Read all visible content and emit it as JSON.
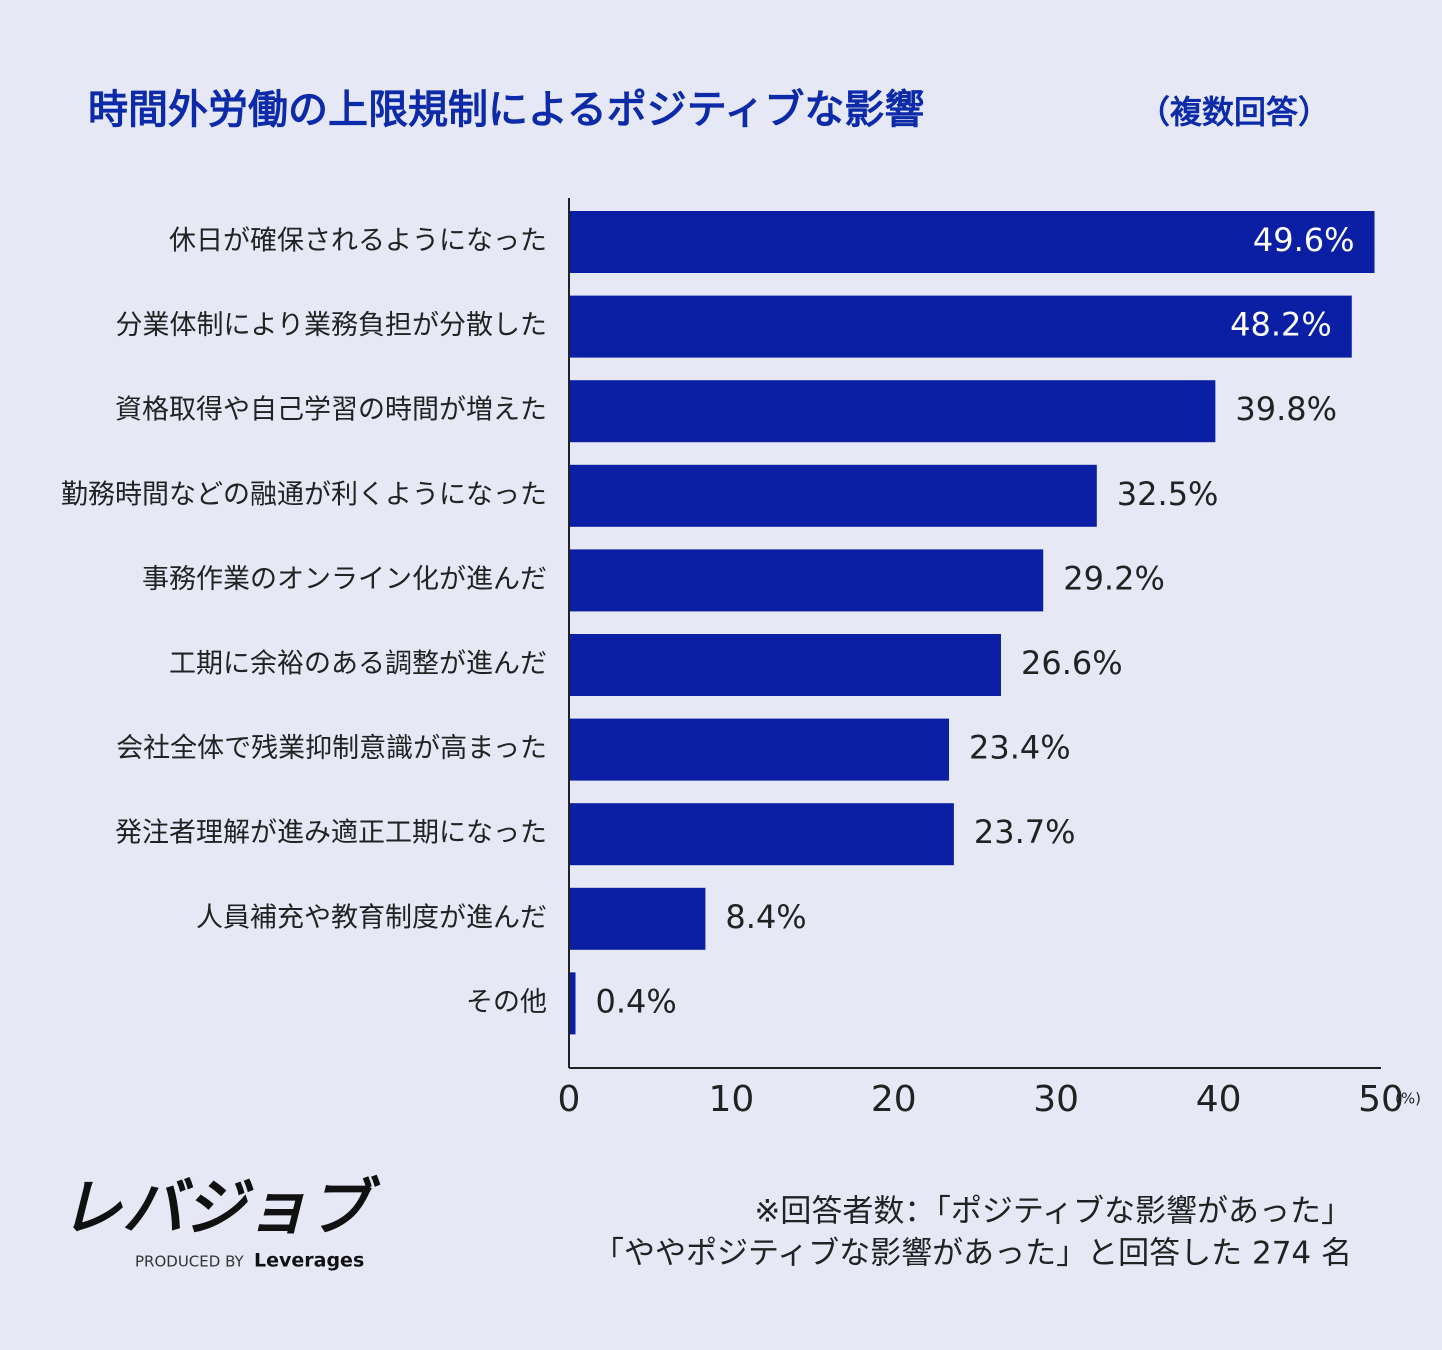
{
  "chart_data": {
    "type": "barh",
    "title": "時間外労働の上限規制によるポジティブな影響",
    "subtitle": "（複数回答）",
    "categories": [
      "休日が確保されるようになった",
      "分業体制により業務負担が分散した",
      "資格取得や自己学習の時間が増えた",
      "勤務時間などの融通が利くようになった",
      "事務作業のオンライン化が進んだ",
      "工期に余裕のある調整が進んだ",
      "会社全体で残業抑制意識が高まった",
      "発注者理解が進み適正工期になった",
      "人員補充や教育制度が進んだ",
      "その他"
    ],
    "values": [
      49.6,
      48.2,
      39.8,
      32.5,
      29.2,
      26.6,
      23.4,
      23.7,
      8.4,
      0.4
    ],
    "value_labels": [
      "49.6%",
      "48.2%",
      "39.8%",
      "32.5%",
      "29.2%",
      "26.6%",
      "23.4%",
      "23.7%",
      "8.4%",
      "0.4%"
    ],
    "color": "#0a1fa3",
    "xlim": [
      0,
      50
    ],
    "xticks": [
      0,
      10,
      20,
      30,
      40,
      50
    ],
    "xlabel": "(%)",
    "grid": false
  },
  "logo": {
    "name": "レバジョブ",
    "produced_by": "PRODUCED BY",
    "brand": "Leverages"
  },
  "note": [
    "※回答者数：「ポジティブな影響があった」",
    "「ややポジティブな影響があった」と回答した 274 名"
  ]
}
